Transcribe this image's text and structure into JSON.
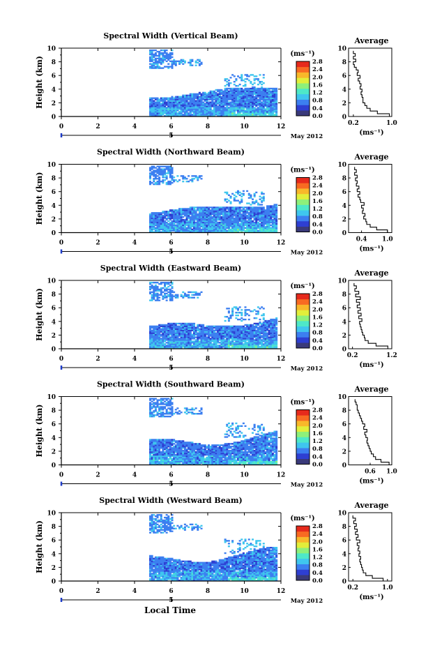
{
  "figure": {
    "xlabel": "Local Time",
    "date_label": "May 2012",
    "date_marker": "5",
    "colorbar_units": "(ms⁻¹)",
    "colorbar_ticks": [
      "2.8",
      "2.4",
      "2.0",
      "1.6",
      "1.2",
      "0.8",
      "0.4",
      "0.0"
    ],
    "colorbar_range": [
      0.0,
      2.8
    ],
    "colormap": [
      "#3a3a7a",
      "#2e3fd2",
      "#3c7ff0",
      "#3fc6ee",
      "#4ee8c8",
      "#8ef07a",
      "#e2ee3a",
      "#f8b82a",
      "#f86a22",
      "#e62a1c"
    ],
    "average_title": "Average",
    "average_xlabel": "(ms⁻¹)"
  },
  "chart_data": [
    {
      "type": "heatmap",
      "title": "Spectral Width (Vertical Beam)",
      "ylabel": "Height (km)",
      "xlim": [
        0,
        12
      ],
      "ylim": [
        0,
        10
      ],
      "x_ticks": [
        "0",
        "2",
        "4",
        "6",
        "8",
        "10",
        "12"
      ],
      "y_ticks": [
        "0",
        "2",
        "4",
        "6",
        "8",
        "10"
      ],
      "data_x_range": [
        4.8,
        11.7
      ],
      "profile": {
        "title": "Average",
        "xlim": [
          0.1,
          1.0
        ],
        "x_ticks": [
          "0.2",
          "1.0"
        ],
        "x_tick_values": [
          0.2,
          1.0
        ],
        "heights": [
          0.2,
          0.6,
          1.0,
          1.4,
          1.8,
          2.2,
          2.6,
          3.0,
          3.4,
          3.8,
          4.2,
          4.6,
          5.0,
          5.4,
          5.8,
          6.2,
          6.6,
          7.0,
          7.4,
          7.8,
          8.2,
          8.6,
          9.0,
          9.4
        ],
        "values": [
          0.95,
          0.7,
          0.55,
          0.48,
          0.44,
          0.4,
          0.4,
          0.38,
          0.36,
          0.38,
          0.34,
          0.36,
          0.33,
          0.3,
          0.34,
          0.28,
          0.3,
          0.26,
          0.22,
          0.2,
          0.25,
          0.2,
          0.24,
          0.2
        ]
      }
    },
    {
      "type": "heatmap",
      "title": "Spectral Width (Northward Beam)",
      "ylabel": "Height (km)",
      "xlim": [
        0,
        12
      ],
      "ylim": [
        0,
        10
      ],
      "x_ticks": [
        "0",
        "2",
        "4",
        "6",
        "8",
        "10",
        "12"
      ],
      "y_ticks": [
        "0",
        "2",
        "4",
        "6",
        "8",
        "10"
      ],
      "data_x_range": [
        4.8,
        11.7
      ],
      "profile": {
        "title": "Average",
        "xlim": [
          0.1,
          1.1
        ],
        "x_ticks": [
          "0.4",
          "1.0"
        ],
        "x_tick_values": [
          0.4,
          1.0
        ],
        "heights": [
          0.2,
          0.6,
          1.0,
          1.4,
          1.8,
          2.2,
          2.6,
          3.0,
          3.4,
          3.8,
          4.2,
          4.6,
          5.0,
          5.4,
          5.8,
          6.2,
          6.6,
          7.0,
          7.4,
          7.8,
          8.2,
          8.6,
          9.0,
          9.4
        ],
        "values": [
          1.0,
          0.75,
          0.6,
          0.52,
          0.5,
          0.45,
          0.48,
          0.42,
          0.44,
          0.4,
          0.46,
          0.38,
          0.36,
          0.32,
          0.36,
          0.3,
          0.34,
          0.28,
          0.3,
          0.26,
          0.3,
          0.24,
          0.28,
          0.24
        ]
      }
    },
    {
      "type": "heatmap",
      "title": "Spectral Width (Eastward Beam)",
      "ylabel": "Height (km)",
      "xlim": [
        0,
        12
      ],
      "ylim": [
        0,
        10
      ],
      "x_ticks": [
        "0",
        "2",
        "4",
        "6",
        "8",
        "10",
        "12"
      ],
      "y_ticks": [
        "0",
        "2",
        "4",
        "6",
        "8",
        "10"
      ],
      "data_x_range": [
        4.8,
        11.7
      ],
      "profile": {
        "title": "Average",
        "xlim": [
          0.1,
          1.2
        ],
        "x_ticks": [
          "0.2",
          "1.2"
        ],
        "x_tick_values": [
          0.2,
          1.2
        ],
        "heights": [
          0.2,
          0.6,
          1.0,
          1.4,
          1.8,
          2.2,
          2.6,
          3.0,
          3.4,
          3.8,
          4.2,
          4.6,
          5.0,
          5.4,
          5.8,
          6.2,
          6.6,
          7.0,
          7.4,
          7.8,
          8.2,
          8.6,
          9.0,
          9.4
        ],
        "values": [
          1.1,
          0.8,
          0.6,
          0.52,
          0.5,
          0.46,
          0.44,
          0.42,
          0.4,
          0.38,
          0.44,
          0.36,
          0.42,
          0.34,
          0.4,
          0.32,
          0.38,
          0.3,
          0.4,
          0.28,
          0.36,
          0.26,
          0.3,
          0.24
        ]
      }
    },
    {
      "type": "heatmap",
      "title": "Spectral Width (Southward Beam)",
      "ylabel": "Height (km)",
      "xlim": [
        0,
        12
      ],
      "ylim": [
        0,
        10
      ],
      "x_ticks": [
        "0",
        "2",
        "4",
        "6",
        "8",
        "10",
        "12"
      ],
      "y_ticks": [
        "0",
        "2",
        "4",
        "6",
        "8",
        "10"
      ],
      "data_x_range": [
        4.8,
        11.7
      ],
      "profile": {
        "title": "Average",
        "xlim": [
          0.2,
          1.0
        ],
        "x_ticks": [
          "0.6",
          "1.0"
        ],
        "x_tick_values": [
          0.6,
          1.0
        ],
        "heights": [
          0.2,
          0.6,
          1.0,
          1.4,
          1.8,
          2.2,
          2.6,
          3.0,
          3.4,
          3.8,
          4.2,
          4.6,
          5.0,
          5.4,
          5.8,
          6.2,
          6.6,
          7.0,
          7.4,
          7.8,
          8.2,
          8.6,
          9.0,
          9.4
        ],
        "values": [
          0.95,
          0.8,
          0.7,
          0.66,
          0.62,
          0.6,
          0.58,
          0.56,
          0.54,
          0.55,
          0.52,
          0.5,
          0.54,
          0.48,
          0.5,
          0.46,
          0.44,
          0.42,
          0.4,
          0.38,
          0.36,
          0.36,
          0.34,
          0.32
        ]
      }
    },
    {
      "type": "heatmap",
      "title": "Spectral Width (Westward Beam)",
      "ylabel": "Height (km)",
      "xlim": [
        0,
        12
      ],
      "ylim": [
        0,
        10
      ],
      "x_ticks": [
        "0",
        "2",
        "4",
        "6",
        "8",
        "10",
        "12"
      ],
      "y_ticks": [
        "0",
        "2",
        "4",
        "6",
        "8",
        "10"
      ],
      "data_x_range": [
        4.8,
        11.7
      ],
      "profile": {
        "title": "Average",
        "xlim": [
          0.1,
          1.1
        ],
        "x_ticks": [
          "0.2",
          "1.0"
        ],
        "x_tick_values": [
          0.2,
          1.0
        ],
        "heights": [
          0.2,
          0.6,
          1.0,
          1.4,
          1.8,
          2.2,
          2.6,
          3.0,
          3.4,
          3.8,
          4.2,
          4.6,
          5.0,
          5.4,
          5.8,
          6.2,
          6.6,
          7.0,
          7.4,
          7.8,
          8.2,
          8.6,
          9.0,
          9.4
        ],
        "values": [
          0.9,
          0.65,
          0.5,
          0.44,
          0.42,
          0.4,
          0.38,
          0.36,
          0.38,
          0.34,
          0.36,
          0.32,
          0.34,
          0.3,
          0.36,
          0.28,
          0.32,
          0.26,
          0.3,
          0.24,
          0.28,
          0.22,
          0.26,
          0.2
        ]
      }
    }
  ]
}
